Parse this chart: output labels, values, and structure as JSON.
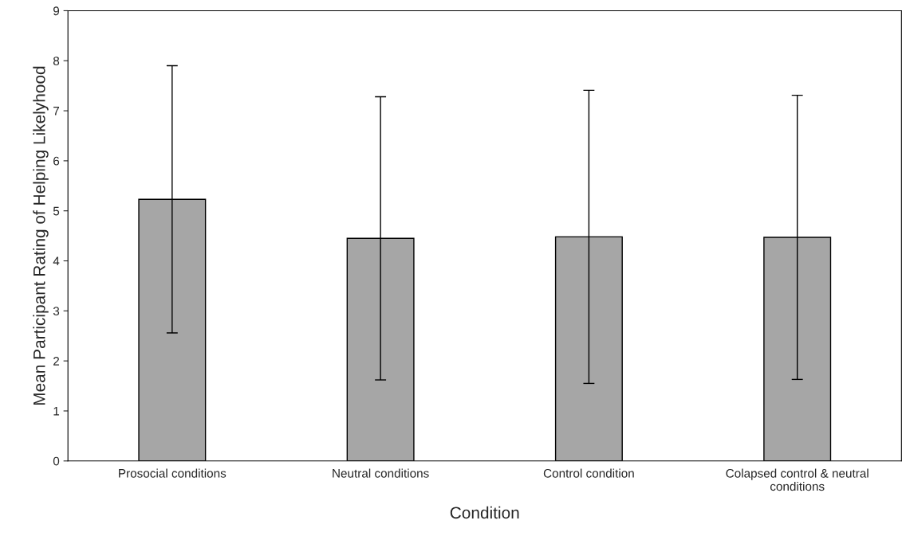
{
  "chart_data": {
    "type": "bar",
    "categories": [
      "Prosocial conditions",
      "Neutral conditions",
      "Control condition",
      "Colapsed control & neutral\nconditions"
    ],
    "values": [
      5.23,
      4.45,
      4.48,
      4.47
    ],
    "errors": [
      2.67,
      2.83,
      2.93,
      2.84
    ],
    "color": "#a6a6a6",
    "xlabel": "Condition",
    "ylabel": "Mean Participant Rating of Helping Likelyhood",
    "ylim": [
      0,
      9
    ],
    "yticks": [
      0,
      1,
      2,
      3,
      4,
      5,
      6,
      7,
      8,
      9
    ],
    "grid": false,
    "legend": false
  }
}
